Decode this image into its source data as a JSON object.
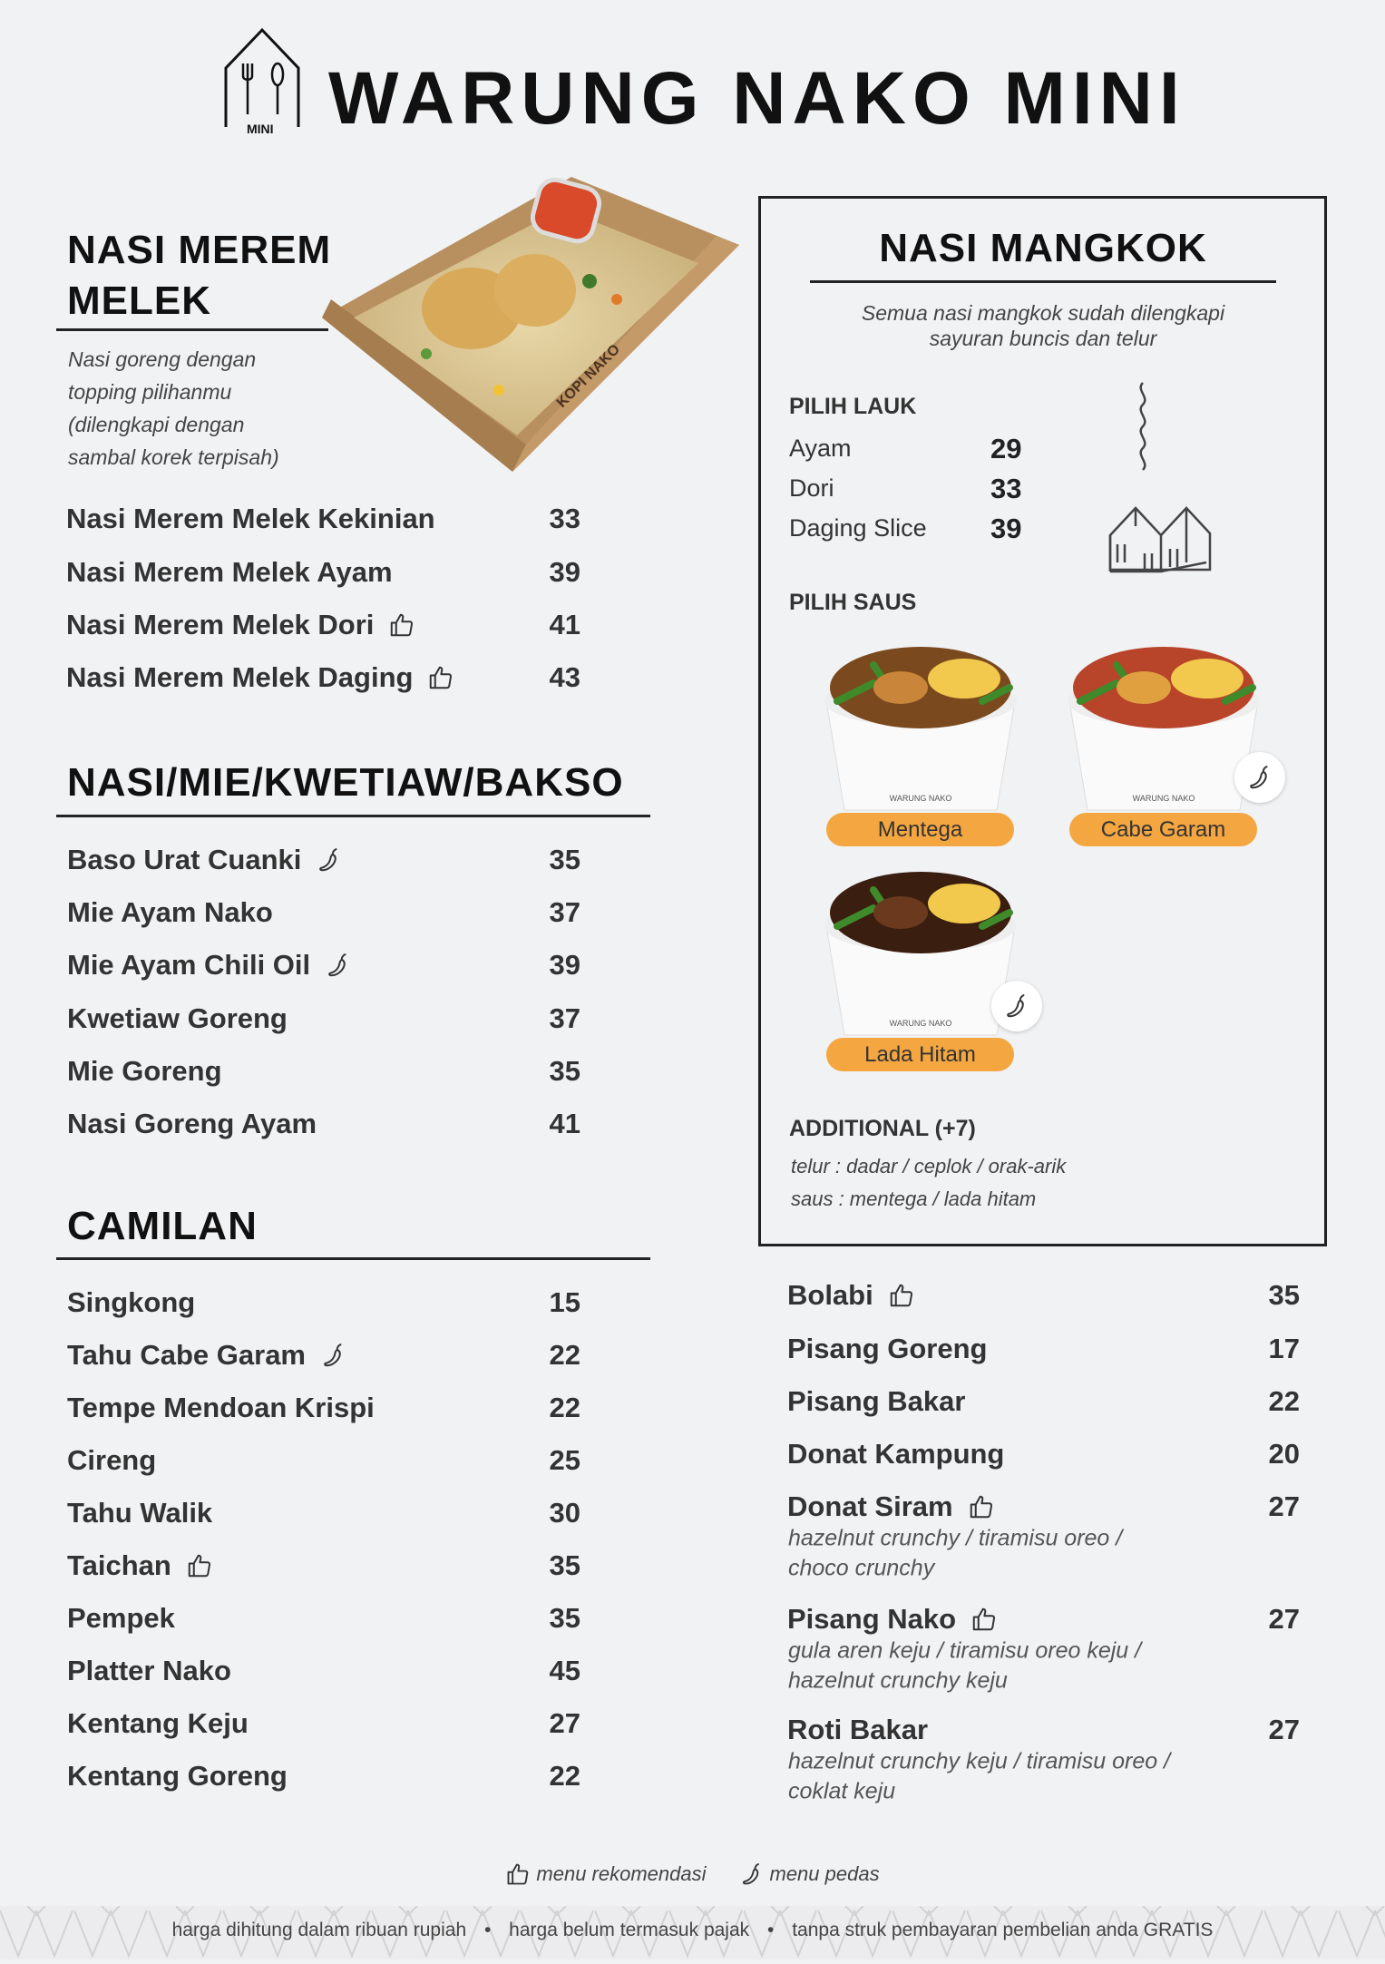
{
  "header": {
    "title": "WARUNG NAKO MINI",
    "logo_text": "MINI"
  },
  "merem": {
    "title_line1": "NASI MEREM",
    "title_line2": "MELEK",
    "desc": [
      "Nasi goreng dengan",
      "topping pilihanmu",
      "(dilengkapi dengan",
      "sambal korek terpisah)"
    ],
    "box_text": "KOPI NAKO",
    "items": [
      {
        "name": "Nasi Merem Melek Kekinian",
        "price": "33"
      },
      {
        "name": "Nasi Merem Melek Ayam",
        "price": "39"
      },
      {
        "name": "Nasi Merem Melek Dori",
        "price": "41",
        "icon": "thumbs-up"
      },
      {
        "name": "Nasi Merem Melek Daging",
        "price": "43",
        "icon": "thumbs-up"
      }
    ]
  },
  "nasi_mie": {
    "title": "NASI/MIE/KWETIAW/BAKSO",
    "items": [
      {
        "name": "Baso Urat Cuanki",
        "price": "35",
        "icon": "chili"
      },
      {
        "name": "Mie Ayam Nako",
        "price": "37"
      },
      {
        "name": "Mie Ayam Chili Oil",
        "price": "39",
        "icon": "chili"
      },
      {
        "name": "Kwetiaw Goreng",
        "price": "37"
      },
      {
        "name": "Mie Goreng",
        "price": "35"
      },
      {
        "name": "Nasi Goreng Ayam",
        "price": "41"
      }
    ]
  },
  "camilan": {
    "title": "CAMILAN",
    "items": [
      {
        "name": "Singkong",
        "price": "15"
      },
      {
        "name": "Tahu Cabe Garam",
        "price": "22",
        "icon": "chili"
      },
      {
        "name": "Tempe Mendoan Krispi",
        "price": "22"
      },
      {
        "name": "Cireng",
        "price": "25"
      },
      {
        "name": "Tahu Walik",
        "price": "30"
      },
      {
        "name": "Taichan",
        "price": "35",
        "icon": "thumbs-up"
      },
      {
        "name": "Pempek",
        "price": "35"
      },
      {
        "name": "Platter Nako",
        "price": "45"
      },
      {
        "name": "Kentang Keju",
        "price": "27"
      },
      {
        "name": "Kentang Goreng",
        "price": "22"
      }
    ],
    "right_items": [
      {
        "name": "Bolabi",
        "price": "35",
        "icon": "thumbs-up"
      },
      {
        "name": "Pisang Goreng",
        "price": "17"
      },
      {
        "name": "Pisang Bakar",
        "price": "22"
      },
      {
        "name": "Donat Kampung",
        "price": "20"
      },
      {
        "name": "Donat Siram",
        "price": "27",
        "icon": "thumbs-up",
        "sub": [
          "hazelnut crunchy / tiramisu oreo /",
          "choco crunchy"
        ]
      },
      {
        "name": "Pisang Nako",
        "price": "27",
        "icon": "thumbs-up",
        "sub": [
          "gula aren keju / tiramisu oreo keju /",
          "hazelnut crunchy keju"
        ]
      },
      {
        "name": "Roti Bakar",
        "price": "27",
        "sub": [
          "hazelnut crunchy keju / tiramisu oreo /",
          "coklat keju"
        ]
      }
    ]
  },
  "mangkok": {
    "title": "NASI MANGKOK",
    "subtitle": [
      "Semua nasi mangkok sudah dilengkapi",
      "sayuran buncis dan telur"
    ],
    "lauk_title": "PILIH LAUK",
    "lauk": [
      {
        "name": "Ayam",
        "price": "29"
      },
      {
        "name": "Dori",
        "price": "33"
      },
      {
        "name": "Daging Slice",
        "price": "39"
      }
    ],
    "saus_title": "PILIH SAUS",
    "saus": [
      {
        "name": "Mentega"
      },
      {
        "name": "Cabe Garam",
        "icon": "chili"
      },
      {
        "name": "Lada Hitam",
        "icon": "chili"
      }
    ],
    "bowl_text": "WARUNG NAKO",
    "additional_title": "ADDITIONAL (+7)",
    "additional": [
      "telur : dadar / ceplok  / orak-arik",
      "saus : mentega / lada hitam"
    ]
  },
  "legend": {
    "recommend": "menu rekomendasi",
    "spicy": "menu pedas"
  },
  "footer": {
    "notes": [
      "harga dihitung dalam ribuan rupiah",
      "harga belum termasuk pajak",
      "tanpa struk pembayaran pembelian anda GRATIS"
    ],
    "separator": "•"
  },
  "colors": {
    "accent": "#f4a640",
    "text": "#2e2e2e",
    "background": "#f1f2f4"
  }
}
